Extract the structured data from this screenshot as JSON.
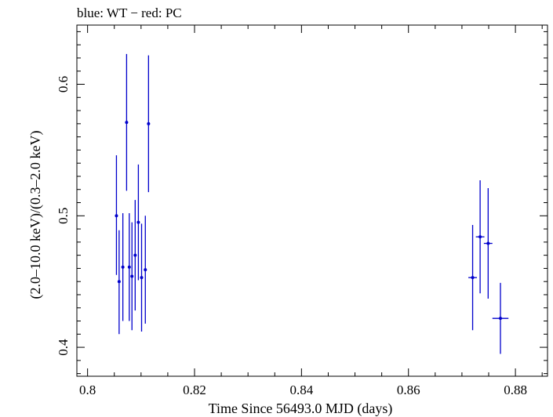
{
  "chart_data": {
    "type": "scatter",
    "title": "blue: WT − red: PC",
    "xlabel": "Time Since 56493.0 MJD (days)",
    "ylabel": "(2.0–10.0 keV)/(0.3–2.0 keV)",
    "xlim": [
      0.798,
      0.886
    ],
    "ylim": [
      0.378,
      0.645
    ],
    "x_ticks": [
      0.8,
      0.82,
      0.84,
      0.86,
      0.88
    ],
    "x_tick_labels": [
      "0.8",
      "0.82",
      "0.84",
      "0.86",
      "0.88"
    ],
    "y_ticks": [
      0.4,
      0.5,
      0.6
    ],
    "y_tick_labels": [
      "0.4",
      "0.5",
      "0.6"
    ],
    "grid": false,
    "series": [
      {
        "name": "WT",
        "color": "#0000cc",
        "points": [
          {
            "x": 0.8054,
            "y": 0.5,
            "yerr_low": 0.045,
            "yerr_high": 0.046,
            "xerr": 0.0002
          },
          {
            "x": 0.8059,
            "y": 0.45,
            "yerr_low": 0.04,
            "yerr_high": 0.039,
            "xerr": 0.0002
          },
          {
            "x": 0.8066,
            "y": 0.461,
            "yerr_low": 0.041,
            "yerr_high": 0.041,
            "xerr": 0.0002
          },
          {
            "x": 0.8073,
            "y": 0.571,
            "yerr_low": 0.052,
            "yerr_high": 0.052,
            "xerr": 0.0002
          },
          {
            "x": 0.8078,
            "y": 0.461,
            "yerr_low": 0.041,
            "yerr_high": 0.041,
            "xerr": 0.0002
          },
          {
            "x": 0.8083,
            "y": 0.454,
            "yerr_low": 0.041,
            "yerr_high": 0.041,
            "xerr": 0.0002
          },
          {
            "x": 0.8089,
            "y": 0.47,
            "yerr_low": 0.042,
            "yerr_high": 0.042,
            "xerr": 0.0002
          },
          {
            "x": 0.8095,
            "y": 0.495,
            "yerr_low": 0.044,
            "yerr_high": 0.044,
            "xerr": 0.0002
          },
          {
            "x": 0.8101,
            "y": 0.453,
            "yerr_low": 0.041,
            "yerr_high": 0.041,
            "xerr": 0.0002
          },
          {
            "x": 0.8108,
            "y": 0.459,
            "yerr_low": 0.041,
            "yerr_high": 0.041,
            "xerr": 0.0002
          },
          {
            "x": 0.8114,
            "y": 0.57,
            "yerr_low": 0.052,
            "yerr_high": 0.052,
            "xerr": 0.0002
          },
          {
            "x": 0.872,
            "y": 0.453,
            "yerr_low": 0.04,
            "yerr_high": 0.04,
            "xerr": 0.0008
          },
          {
            "x": 0.8734,
            "y": 0.484,
            "yerr_low": 0.043,
            "yerr_high": 0.043,
            "xerr": 0.0008
          },
          {
            "x": 0.8749,
            "y": 0.479,
            "yerr_low": 0.042,
            "yerr_high": 0.042,
            "xerr": 0.0008
          },
          {
            "x": 0.8772,
            "y": 0.422,
            "yerr_low": 0.027,
            "yerr_high": 0.027,
            "xerr": 0.0015
          }
        ]
      }
    ]
  }
}
